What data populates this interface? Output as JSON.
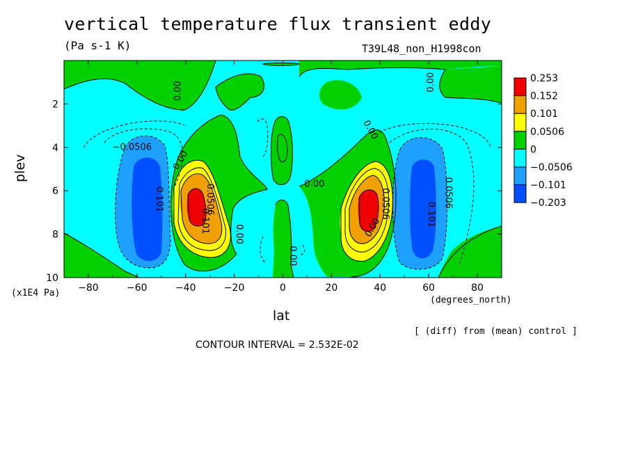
{
  "chart_data": {
    "type": "heatmap",
    "title": "vertical temperature flux transient eddy",
    "units": "(Pa s-1 K)",
    "run_label": "T39L48_non_H1998con",
    "xlabel": "lat",
    "ylabel": "plev",
    "x_units": "(degrees_north)",
    "y_units": "(x1E4 Pa)",
    "xlim": [
      -90,
      90
    ],
    "ylim": [
      10,
      0
    ],
    "x_ticks": [
      -80,
      -60,
      -40,
      -20,
      0,
      20,
      40,
      60,
      80
    ],
    "y_ticks": [
      2,
      4,
      6,
      8,
      10
    ],
    "footnote": "[ (diff) from (mean) control ]",
    "contour_interval": "CONTOUR INTERVAL = 2.532E-02",
    "legend": {
      "labels": [
        "0.253",
        "0.152",
        "0.101",
        "0.0506",
        "0",
        "-0.0506",
        "-0.101",
        "-0.203"
      ],
      "colors": [
        "#f00000",
        "#f0a000",
        "#ffff00",
        "#00d000",
        "#00ffff",
        "#1ea0ff",
        "#0050ff"
      ]
    },
    "contour_labels": [
      {
        "text": "0.00",
        "lat": -43,
        "plev": 1.4,
        "angle": -90
      },
      {
        "text": "-0.0506",
        "lat": -62,
        "plev": 4.0,
        "angle": 0
      },
      {
        "text": "0.00",
        "lat": -42,
        "plev": 4.6,
        "angle": -60
      },
      {
        "text": "0.101",
        "lat": -51,
        "plev": 6.4,
        "angle": 90
      },
      {
        "text": "0.0506",
        "lat": -30,
        "plev": 6.4,
        "angle": 90
      },
      {
        "text": "0.101",
        "lat": -32,
        "plev": 7.4,
        "angle": 90
      },
      {
        "text": "0.00",
        "lat": -18,
        "plev": 8.0,
        "angle": 90
      },
      {
        "text": "0.00",
        "lat": 4,
        "plev": 9.0,
        "angle": 90
      },
      {
        "text": "0.00",
        "lat": 13,
        "plev": 5.7,
        "angle": 0
      },
      {
        "text": "0.00",
        "lat": 36,
        "plev": 3.2,
        "angle": 60
      },
      {
        "text": "0.00",
        "lat": 61,
        "plev": 1.0,
        "angle": -90
      },
      {
        "text": "0.0506",
        "lat": 42,
        "plev": 6.6,
        "angle": 90
      },
      {
        "text": "0.00",
        "lat": 37,
        "plev": 7.7,
        "angle": -60
      },
      {
        "text": "0.101",
        "lat": 61,
        "plev": 7.1,
        "angle": 90
      },
      {
        "text": "0.0506",
        "lat": 68,
        "plev": 6.1,
        "angle": 90
      }
    ]
  }
}
